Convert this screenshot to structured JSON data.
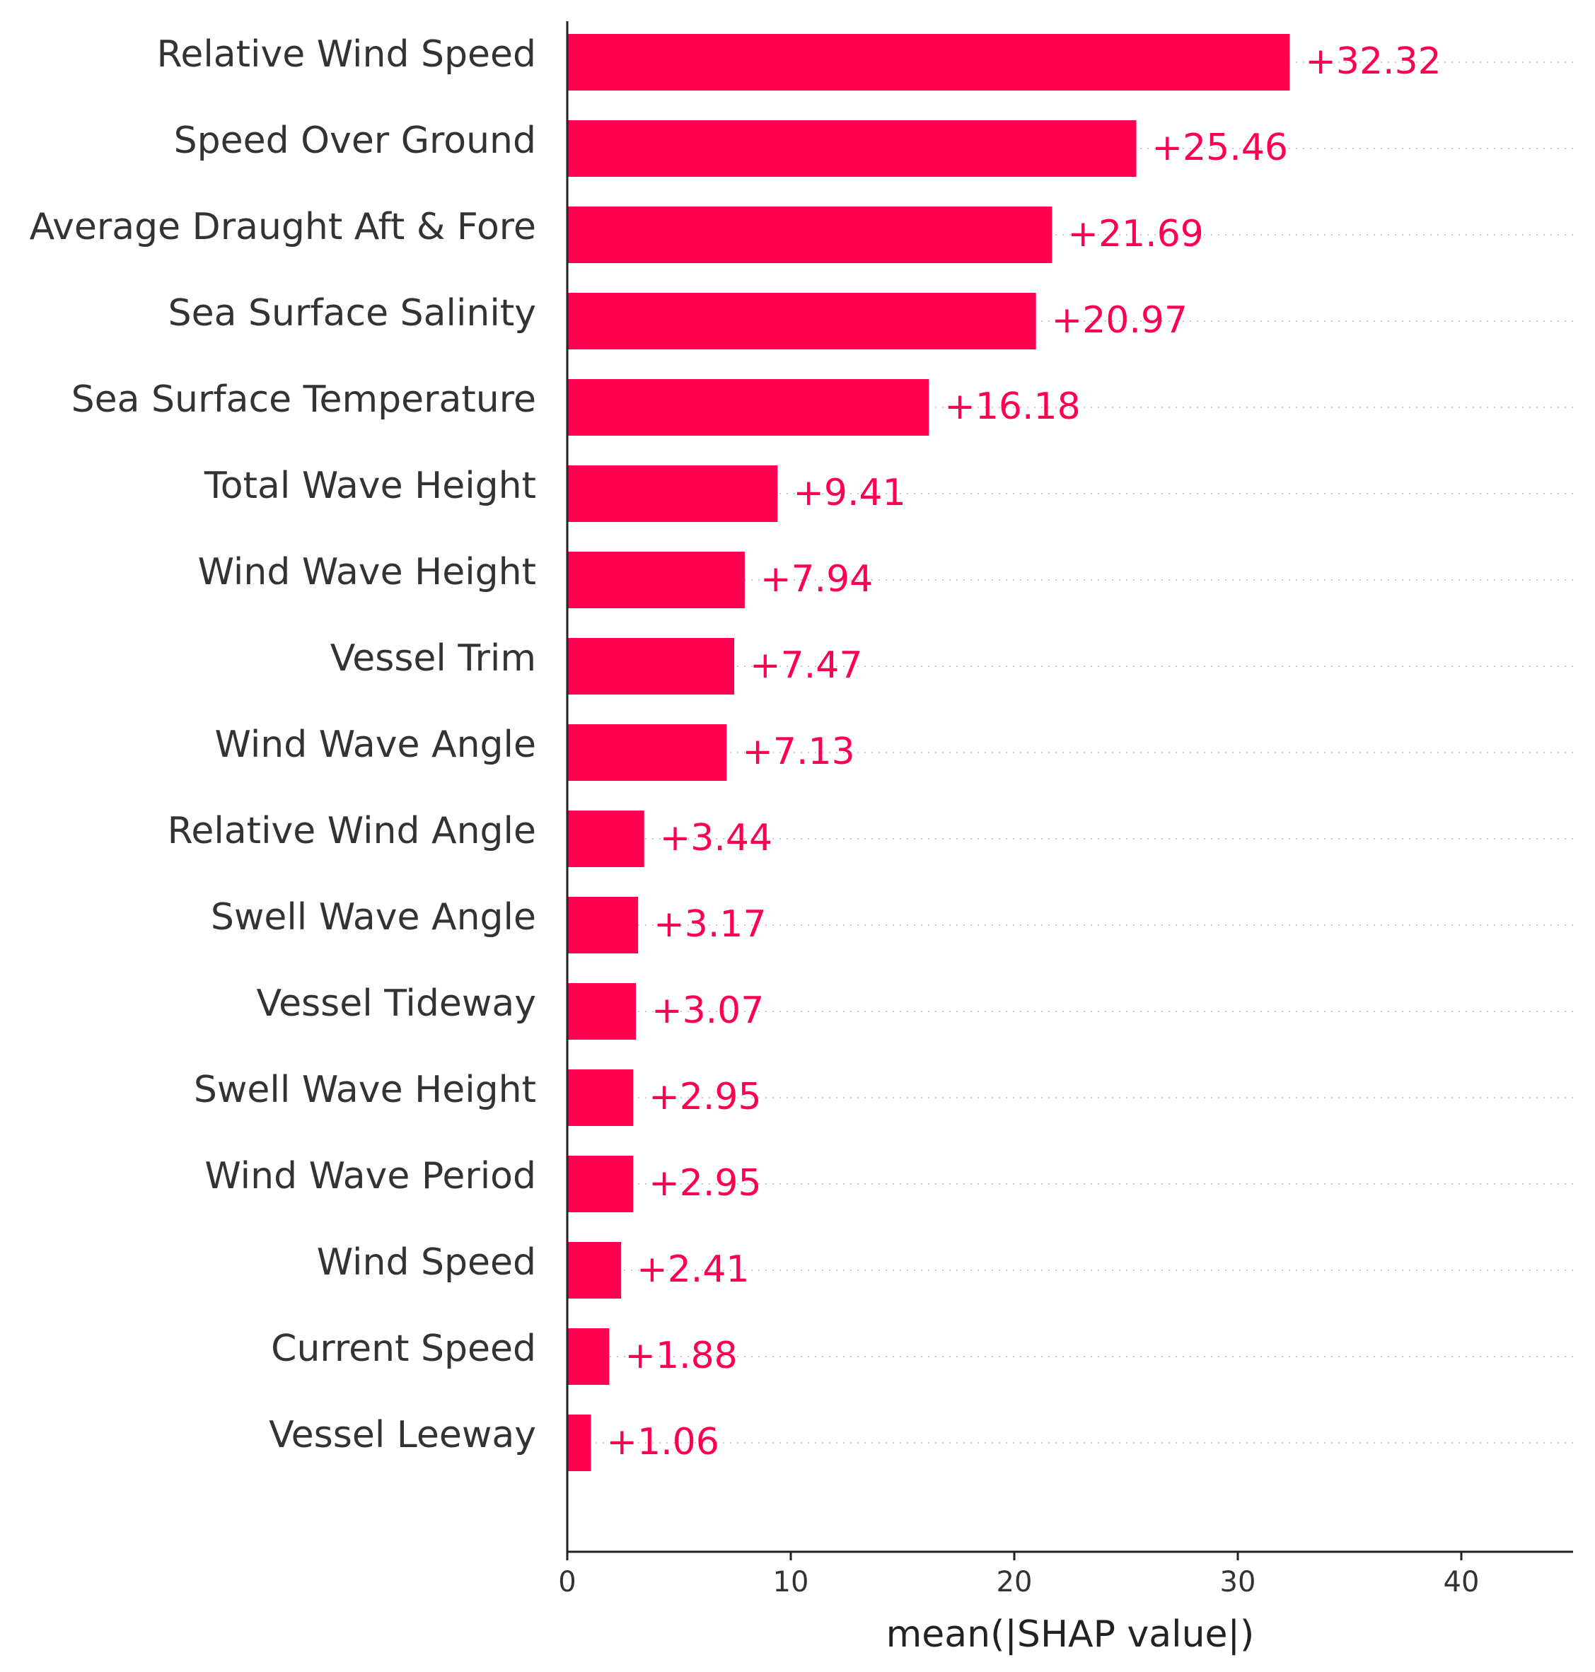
{
  "chart_data": {
    "type": "bar",
    "orientation": "horizontal",
    "categories": [
      "Relative Wind Speed",
      "Speed Over Ground",
      "Average Draught Aft & Fore",
      "Sea Surface Salinity",
      "Sea Surface Temperature",
      "Total Wave Height",
      "Wind Wave Height",
      "Vessel Trim",
      "Wind Wave Angle",
      "Relative Wind Angle",
      "Swell Wave Angle",
      "Vessel Tideway",
      "Swell Wave Height",
      "Wind Wave Period",
      "Wind Speed",
      "Current Speed",
      "Vessel Leeway"
    ],
    "values": [
      32.32,
      25.46,
      21.69,
      20.97,
      16.18,
      9.41,
      7.94,
      7.47,
      7.13,
      3.44,
      3.17,
      3.07,
      2.95,
      2.95,
      2.41,
      1.88,
      1.06
    ],
    "value_labels": [
      "+32.32",
      "+25.46",
      "+21.69",
      "+20.97",
      "+16.18",
      "+9.41",
      "+7.94",
      "+7.47",
      "+7.13",
      "+3.44",
      "+3.17",
      "+3.07",
      "+2.95",
      "+2.95",
      "+2.41",
      "+1.88",
      "+1.06"
    ],
    "xlabel": "mean(|SHAP value|)",
    "xticks": [
      0,
      10,
      20,
      30,
      40
    ],
    "xlim": [
      0,
      45
    ],
    "bar_color": "#ff0051",
    "grid": "horizontal dotted guide lines"
  }
}
